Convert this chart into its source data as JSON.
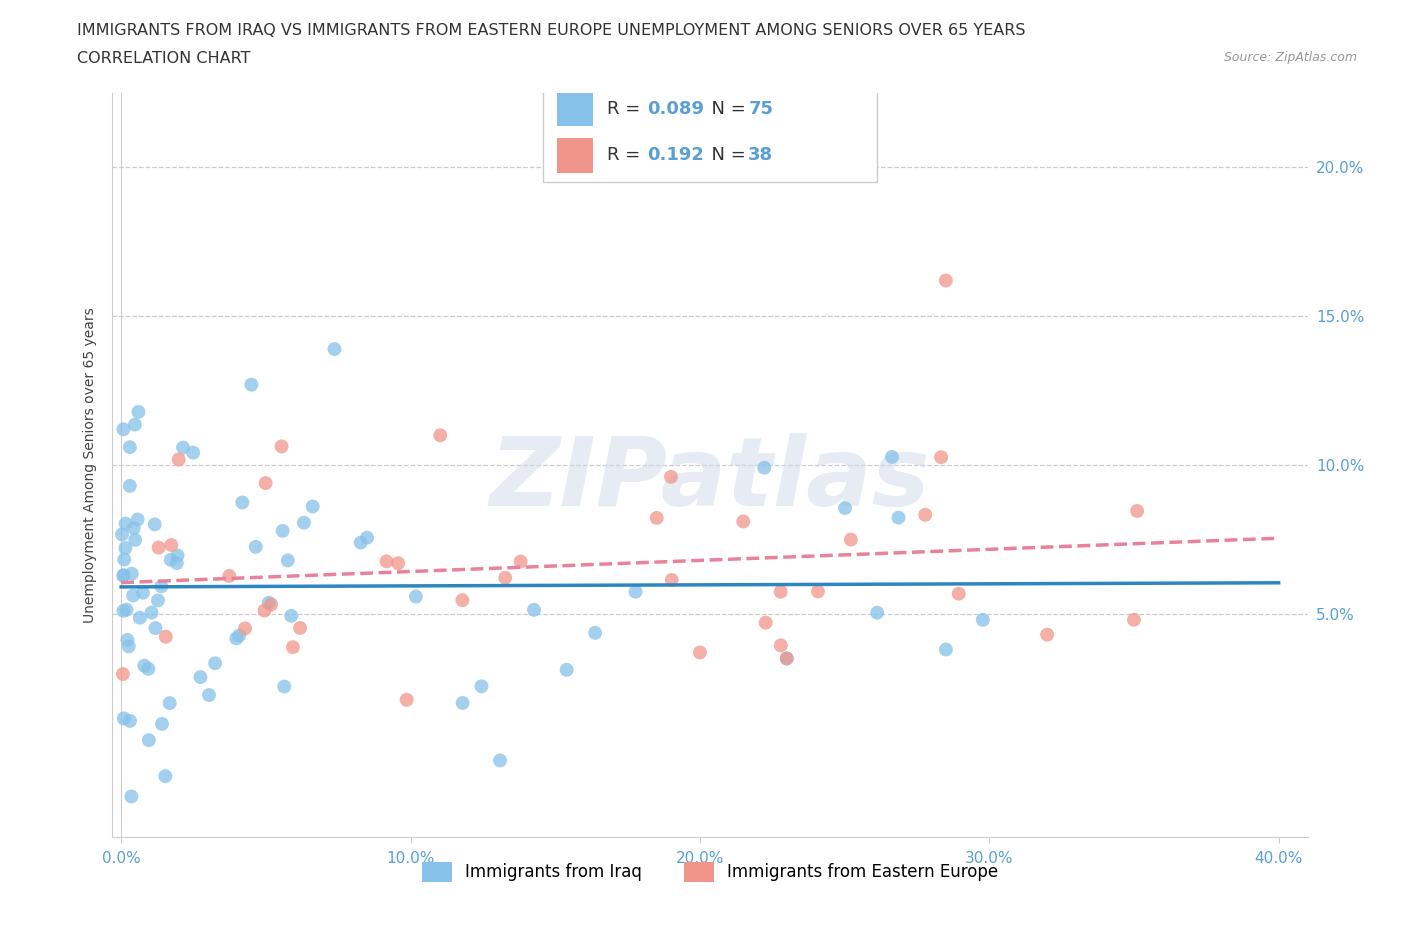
{
  "title_line1": "IMMIGRANTS FROM IRAQ VS IMMIGRANTS FROM EASTERN EUROPE UNEMPLOYMENT AMONG SENIORS OVER 65 YEARS",
  "title_line2": "CORRELATION CHART",
  "source": "Source: ZipAtlas.com",
  "ylabel": "Unemployment Among Seniors over 65 years",
  "xlim": [
    -0.003,
    0.41
  ],
  "ylim": [
    -0.025,
    0.225
  ],
  "yticks": [
    0.05,
    0.1,
    0.15,
    0.2
  ],
  "ytick_labels": [
    "5.0%",
    "10.0%",
    "15.0%",
    "20.0%"
  ],
  "xticks": [
    0.0,
    0.1,
    0.2,
    0.3,
    0.4
  ],
  "xtick_labels": [
    "0.0%",
    "10.0%",
    "20.0%",
    "30.0%",
    "40.0%"
  ],
  "iraq_color": "#85c1e9",
  "ee_color": "#f1948a",
  "iraq_line_color": "#2e86c1",
  "ee_line_color": "#e8829a",
  "iraq_R": 0.089,
  "iraq_N": 75,
  "ee_R": 0.192,
  "ee_N": 38,
  "watermark": "ZIPatlas",
  "background_color": "#ffffff",
  "grid_color": "#cccccc",
  "tick_color": "#5a9fd4",
  "title_fontsize": 11.5,
  "axis_label_fontsize": 10,
  "tick_fontsize": 11
}
